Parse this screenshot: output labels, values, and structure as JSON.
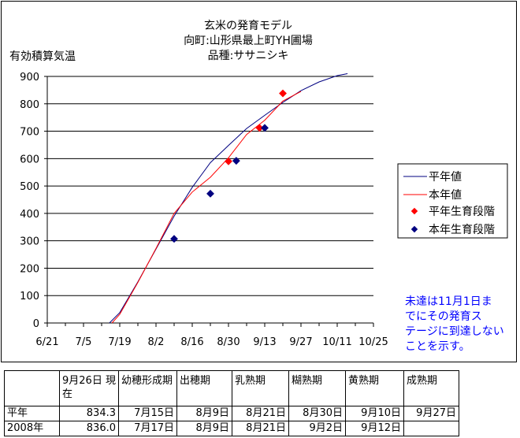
{
  "chart_data": {
    "type": "line",
    "title_lines": [
      "玄米の発育モデル",
      "向町:山形県最上町YH圃場",
      "品種:ササニシキ"
    ],
    "ylabel": "有効積算気温",
    "ylim": [
      0,
      900
    ],
    "yticks": [
      "0",
      "100",
      "200",
      "300",
      "400",
      "500",
      "600",
      "700",
      "800",
      "900"
    ],
    "xlim": [
      0,
      126
    ],
    "xticks": [
      {
        "label": "6/21",
        "day": 0
      },
      {
        "label": "7/5",
        "day": 14
      },
      {
        "label": "7/19",
        "day": 28
      },
      {
        "label": "8/2",
        "day": 42
      },
      {
        "label": "8/16",
        "day": 56
      },
      {
        "label": "8/30",
        "day": 70
      },
      {
        "label": "9/13",
        "day": 84
      },
      {
        "label": "9/27",
        "day": 98
      },
      {
        "label": "10/11",
        "day": 112
      },
      {
        "label": "10/25",
        "day": 126
      }
    ],
    "grid": "horizontal",
    "legend_position": "right",
    "series": [
      {
        "name": "平年値",
        "kind": "line",
        "color": "#000080",
        "points": [
          [
            24,
            0
          ],
          [
            28,
            38
          ],
          [
            35,
            150
          ],
          [
            42,
            270
          ],
          [
            49,
            390
          ],
          [
            56,
            495
          ],
          [
            63,
            585
          ],
          [
            70,
            648
          ],
          [
            77,
            710
          ],
          [
            84,
            758
          ],
          [
            91,
            805
          ],
          [
            98,
            848
          ],
          [
            105,
            880
          ],
          [
            112,
            903
          ],
          [
            116,
            910
          ]
        ]
      },
      {
        "name": "本年値",
        "kind": "line",
        "color": "#ff0000",
        "points": [
          [
            25,
            0
          ],
          [
            28,
            32
          ],
          [
            35,
            148
          ],
          [
            42,
            272
          ],
          [
            49,
            400
          ],
          [
            56,
            478
          ],
          [
            63,
            532
          ],
          [
            70,
            603
          ],
          [
            77,
            688
          ],
          [
            84,
            740
          ],
          [
            91,
            810
          ],
          [
            98,
            845
          ]
        ]
      },
      {
        "name": "平年生育段階",
        "kind": "marker",
        "color": "#ff0000",
        "points": [
          [
            70,
            590
          ],
          [
            82,
            712
          ],
          [
            91,
            838
          ]
        ]
      },
      {
        "name": "本年生育段階",
        "kind": "marker",
        "color": "#000080",
        "points": [
          [
            49,
            307
          ],
          [
            63,
            472
          ],
          [
            73,
            592
          ],
          [
            84,
            712
          ]
        ]
      }
    ],
    "note_lines": [
      "未達は11月1日ま",
      "でにその発育ス",
      "テージに到達しない",
      "ことを示す。"
    ]
  },
  "table": {
    "header": [
      "",
      "9月26日 現在",
      "幼穂形成期",
      "出穂期",
      "乳熟期",
      "糊熟期",
      "黄熟期",
      "成熟期"
    ],
    "rows": [
      [
        "平年",
        "834.3",
        "7月15日",
        "8月9日",
        "8月21日",
        "8月30日",
        "9月10日",
        "9月27日"
      ],
      [
        "2008年",
        "836.0",
        "7月17日",
        "8月9日",
        "8月21日",
        "9月2日",
        "9月12日",
        ""
      ]
    ]
  }
}
